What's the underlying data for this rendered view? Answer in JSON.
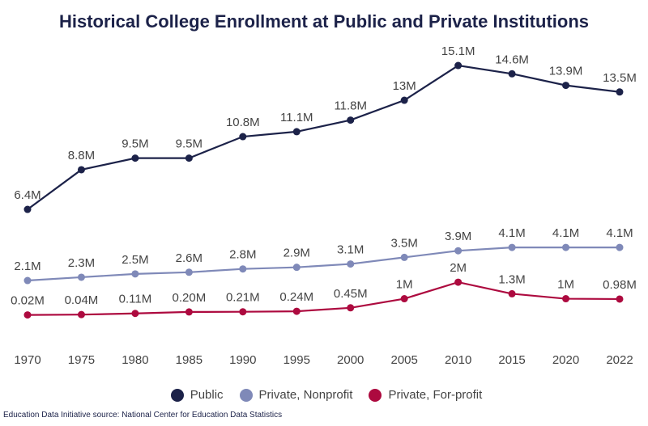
{
  "chart_data": {
    "type": "line",
    "title": "Historical College Enrollment at Public and Private Institutions",
    "categories": [
      "1970",
      "1975",
      "1980",
      "1985",
      "1990",
      "1995",
      "2000",
      "2005",
      "2010",
      "2015",
      "2020",
      "2022"
    ],
    "series": [
      {
        "name": "Public",
        "color": "#1c2249",
        "values": [
          6.4,
          8.8,
          9.5,
          9.5,
          10.8,
          11.1,
          11.8,
          13,
          15.1,
          14.6,
          13.9,
          13.5
        ],
        "labels": [
          "6.4M",
          "8.8M",
          "9.5M",
          "9.5M",
          "10.8M",
          "11.1M",
          "11.8M",
          "13M",
          "15.1M",
          "14.6M",
          "13.9M",
          "13.5M"
        ]
      },
      {
        "name": "Private, Nonprofit",
        "color": "#7f89b8",
        "values": [
          2.1,
          2.3,
          2.5,
          2.6,
          2.8,
          2.9,
          3.1,
          3.5,
          3.9,
          4.1,
          4.1,
          4.1
        ],
        "labels": [
          "2.1M",
          "2.3M",
          "2.5M",
          "2.6M",
          "2.8M",
          "2.9M",
          "3.1M",
          "3.5M",
          "3.9M",
          "4.1M",
          "4.1M",
          "4.1M"
        ]
      },
      {
        "name": "Private, For-profit",
        "color": "#ad0a3f",
        "values": [
          0.02,
          0.04,
          0.11,
          0.2,
          0.21,
          0.24,
          0.45,
          1,
          2,
          1.3,
          1,
          0.98
        ],
        "labels": [
          "0.02M",
          "0.04M",
          "0.11M",
          "0.20M",
          "0.21M",
          "0.24M",
          "0.45M",
          "1M",
          "2M",
          "1.3M",
          "1M",
          "0.98M"
        ]
      }
    ],
    "ylim": [
      0,
      16
    ],
    "grid": false,
    "legend": "bottom",
    "xlabel": "",
    "ylabel": ""
  },
  "source": "Education Data Initiative source: National Center for Education Data Statistics"
}
